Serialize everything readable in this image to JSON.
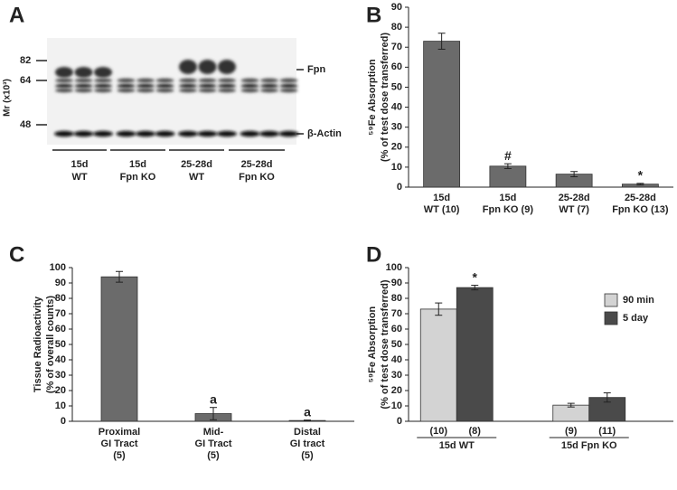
{
  "blot": {
    "panel_label": "A",
    "ylabel": "Mr (x10³)",
    "mw_ticks": [
      "82",
      "64",
      "48"
    ],
    "bands": [
      "Fpn",
      "β-Actin"
    ],
    "groups": [
      "15d\nWT",
      "15d\nFpn KO",
      "25-28d\nWT",
      "25-28d\nFpn KO"
    ]
  },
  "chart_data": [
    {
      "type": "bar",
      "panel_label": "B",
      "ylabel": "⁵⁹Fe Absorption\n(% of test dose transferred)",
      "categories": [
        "15d\nWT (10)",
        "15d\nFpn KO (9)",
        "25-28d\nWT (7)",
        "25-28d\nFpn KO (13)"
      ],
      "values": [
        73,
        10.5,
        6.5,
        1.5
      ],
      "errors": [
        4,
        1.2,
        1.3,
        0.4
      ],
      "annotations": [
        null,
        "#",
        null,
        "*"
      ],
      "color": "#6b6b6b",
      "ylim": [
        0,
        90
      ],
      "yticks": [
        0,
        10,
        20,
        30,
        40,
        50,
        60,
        70,
        80,
        90
      ]
    },
    {
      "type": "bar",
      "panel_label": "C",
      "ylabel": "Tissue Radioactivity\n(% of overall counts)",
      "categories": [
        "Proximal\nGI Tract\n(5)",
        "Mid-\nGI Tract\n(5)",
        "Distal\nGI tract\n(5)"
      ],
      "values": [
        94,
        5,
        0.5
      ],
      "errors": [
        3.5,
        4,
        0.3
      ],
      "annotations": [
        null,
        "a",
        "a"
      ],
      "color": "#6b6b6b",
      "ylim": [
        0,
        100
      ],
      "yticks": [
        0,
        10,
        20,
        30,
        40,
        50,
        60,
        70,
        80,
        90,
        100
      ]
    },
    {
      "type": "grouped_bar",
      "panel_label": "D",
      "ylabel": "⁵⁹Fe Absorption\n(% of test dose transferred)",
      "categories": [
        "15d WT",
        "15d Fpn KO"
      ],
      "legend": "right",
      "series": [
        {
          "name": "90 min",
          "color": "#d3d3d3",
          "values": [
            73,
            10.5
          ],
          "errors": [
            4,
            1.2
          ],
          "labels": [
            "(10)",
            "(9)"
          ],
          "annotations": [
            null,
            null
          ]
        },
        {
          "name": "5 day",
          "color": "#4a4a4a",
          "values": [
            87,
            15.5
          ],
          "errors": [
            1.5,
            3
          ],
          "labels": [
            "(8)",
            "(11)"
          ],
          "annotations": [
            "*",
            null
          ]
        }
      ],
      "ylim": [
        0,
        100
      ],
      "yticks": [
        0,
        10,
        20,
        30,
        40,
        50,
        60,
        70,
        80,
        90,
        100
      ]
    }
  ]
}
